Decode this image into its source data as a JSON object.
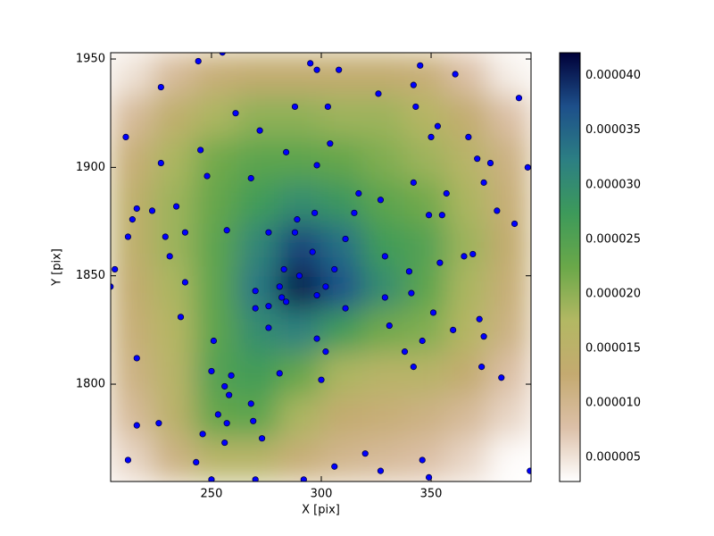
{
  "chart_data": {
    "type": "scatter",
    "xlabel": "X [pix]",
    "ylabel": "Y [pix]",
    "xlim": [
      204.1,
      395.5
    ],
    "ylim": [
      1755.1,
      1952.9
    ],
    "xticks": [
      250,
      300,
      350
    ],
    "yticks": [
      1800,
      1850,
      1900,
      1950
    ],
    "color": "#0000ff",
    "edgecolor": "#00004a",
    "x": [
      244,
      255,
      295,
      298,
      308,
      345,
      361,
      390,
      227,
      326,
      342,
      343,
      288,
      303,
      261,
      353,
      211,
      272,
      304,
      350,
      367,
      245,
      284,
      227,
      298,
      371,
      377,
      394,
      248,
      268,
      342,
      374,
      317,
      357,
      327,
      234,
      216,
      223,
      315,
      297,
      349,
      355,
      380,
      388,
      214,
      289,
      257,
      276,
      288,
      212,
      229,
      238,
      311,
      231,
      296,
      329,
      365,
      369,
      354,
      206,
      283,
      306,
      340,
      290,
      204,
      238,
      281,
      302,
      270,
      341,
      282,
      284,
      298,
      329,
      270,
      276,
      311,
      351,
      236,
      372,
      331,
      276,
      360,
      374,
      251,
      298,
      346,
      338,
      302,
      216,
      342,
      373,
      250,
      281,
      259,
      382,
      300,
      256,
      258,
      268,
      253,
      257,
      269,
      216,
      226,
      246,
      273,
      256,
      212,
      243,
      346,
      320,
      306,
      327,
      250,
      270,
      292,
      349,
      395
    ],
    "y": [
      1949,
      1953,
      1948,
      1945,
      1945,
      1947,
      1943,
      1932,
      1937,
      1934,
      1938,
      1928,
      1928,
      1928,
      1925,
      1919,
      1914,
      1917,
      1911,
      1914,
      1914,
      1908,
      1907,
      1902,
      1901,
      1904,
      1902,
      1900,
      1896,
      1895,
      1893,
      1893,
      1888,
      1888,
      1885,
      1882,
      1881,
      1880,
      1879,
      1879,
      1878,
      1878,
      1880,
      1874,
      1876,
      1876,
      1871,
      1870,
      1870,
      1868,
      1868,
      1870,
      1867,
      1859,
      1861,
      1859,
      1859,
      1860,
      1856,
      1853,
      1853,
      1853,
      1852,
      1850,
      1845,
      1847,
      1845,
      1845,
      1843,
      1842,
      1840,
      1838,
      1841,
      1840,
      1835,
      1836,
      1835,
      1833,
      1831,
      1830,
      1827,
      1826,
      1825,
      1822,
      1820,
      1821,
      1820,
      1815,
      1815,
      1812,
      1808,
      1808,
      1806,
      1805,
      1804,
      1803,
      1802,
      1799,
      1795,
      1791,
      1786,
      1782,
      1783,
      1781,
      1782,
      1777,
      1775,
      1773,
      1765,
      1764,
      1765,
      1768,
      1762,
      1760,
      1756,
      1756,
      1756,
      1757,
      1760
    ],
    "heatmap": {
      "clim": [
        2.8e-06,
        4.21e-05
      ],
      "cticks": [
        {
          "value": 5e-06,
          "label": "0.000005"
        },
        {
          "value": 1e-05,
          "label": "0.000010"
        },
        {
          "value": 1.5e-05,
          "label": "0.000015"
        },
        {
          "value": 2e-05,
          "label": "0.000020"
        },
        {
          "value": 2.5e-05,
          "label": "0.000025"
        },
        {
          "value": 3e-05,
          "label": "0.000030"
        },
        {
          "value": 3.5e-05,
          "label": "0.000035"
        },
        {
          "value": 4e-05,
          "label": "0.000040"
        }
      ],
      "colormap": [
        "#ffffff",
        "#dcc0a8",
        "#c4aa70",
        "#b3b863",
        "#6aa849",
        "#3d9a5a",
        "#2c7f83",
        "#1d4f8a",
        "#000038"
      ],
      "z": [
        [
          5e-06,
          9e-06,
          1.2e-05,
          1.3e-05,
          1.3e-05,
          1.3e-05,
          1.3e-05,
          1.2e-05,
          8e-06,
          4e-06
        ],
        [
          9e-06,
          1.4e-05,
          1.8e-05,
          2e-05,
          2e-05,
          1.9e-05,
          1.9e-05,
          1.7e-05,
          1.3e-05,
          8e-06
        ],
        [
          1.2e-05,
          1.8e-05,
          2.2e-05,
          2.4e-05,
          2.4e-05,
          2.3e-05,
          2.1e-05,
          1.9e-05,
          1.6e-05,
          1.1e-05
        ],
        [
          1.4e-05,
          1.9e-05,
          2.3e-05,
          2.7e-05,
          3e-05,
          2.8e-05,
          2.4e-05,
          2.2e-05,
          1.8e-05,
          1.2e-05
        ],
        [
          1.4e-05,
          1.9e-05,
          2.4e-05,
          3.1e-05,
          3.8e-05,
          3.4e-05,
          2.7e-05,
          2.5e-05,
          1.9e-05,
          1.3e-05
        ],
        [
          1.3e-05,
          1.8e-05,
          2.4e-05,
          3.3e-05,
          4.1e-05,
          3.7e-05,
          3e-05,
          2.4e-05,
          1.8e-05,
          1.2e-05
        ],
        [
          1.2e-05,
          1.7e-05,
          2.4e-05,
          3e-05,
          3.2e-05,
          2.7e-05,
          2.2e-05,
          2.1e-05,
          1.7e-05,
          1.1e-05
        ],
        [
          1.1e-05,
          1.6e-05,
          2.5e-05,
          2.7e-05,
          2.3e-05,
          1.8e-05,
          1.6e-05,
          1.6e-05,
          1.3e-05,
          8e-06
        ],
        [
          9e-06,
          1.5e-05,
          2.3e-05,
          2.4e-05,
          1.8e-05,
          1.3e-05,
          1.2e-05,
          1.1e-05,
          9e-06,
          6e-06
        ],
        [
          6e-06,
          1.1e-05,
          1.6e-05,
          1.6e-05,
          1.2e-05,
          1e-05,
          9e-06,
          8e-06,
          6e-06,
          3e-06
        ]
      ]
    }
  }
}
